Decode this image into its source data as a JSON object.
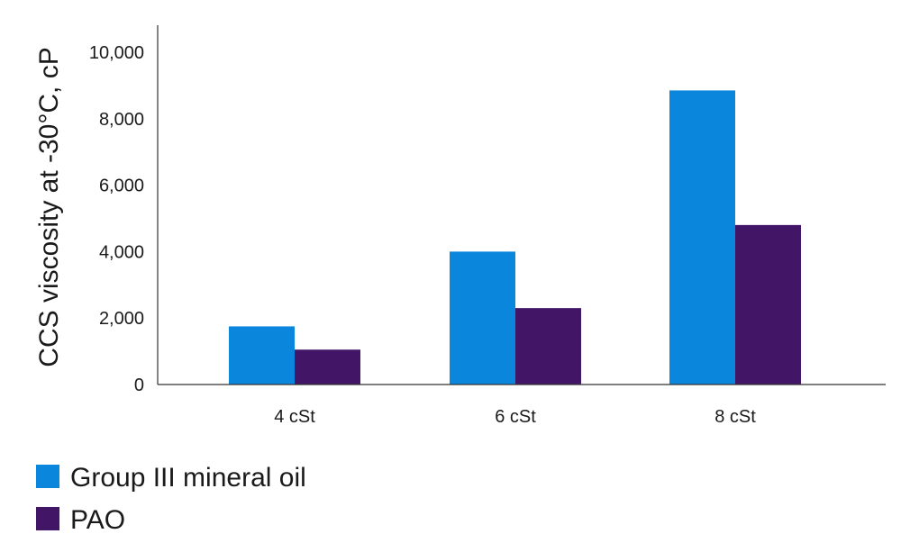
{
  "chart_data": {
    "type": "bar",
    "title": "",
    "xlabel": "",
    "ylabel": "CCS viscosity at -30°C, cP",
    "categories": [
      "4 cSt",
      "6 cSt",
      "8 cSt"
    ],
    "series": [
      {
        "name": "Group III mineral oil",
        "color": "#0a87dc",
        "values": [
          1750,
          4000,
          8850
        ]
      },
      {
        "name": "PAO",
        "color": "#421566",
        "values": [
          1050,
          2300,
          4800
        ]
      }
    ],
    "ylim": [
      0,
      10000
    ],
    "yticks": [
      0,
      2000,
      4000,
      6000,
      8000,
      10000
    ],
    "ytick_labels": [
      "0",
      "2,000",
      "4,000",
      "6,000",
      "8,000",
      "10,000"
    ],
    "grid": false,
    "legend_position": "bottom-left"
  }
}
